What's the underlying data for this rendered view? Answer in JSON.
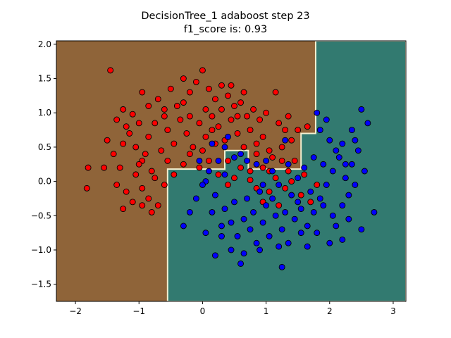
{
  "chart_data": {
    "type": "scatter",
    "title_line1": "DecisionTree_1 adaboost step 23",
    "title_line2": "f1_score is: 0.93",
    "xlabel": "",
    "ylabel": "",
    "xlim": [
      -2.3,
      3.2
    ],
    "ylim": [
      -1.75,
      2.05
    ],
    "xticks": [
      -2,
      -1,
      0,
      1,
      2,
      3
    ],
    "yticks": [
      -1.5,
      -1.0,
      -0.5,
      0.0,
      0.5,
      1.0,
      1.5,
      2.0
    ],
    "xtick_labels": [
      "−2",
      "−1",
      "0",
      "1",
      "2",
      "3"
    ],
    "ytick_labels": [
      "−1.5",
      "−1.0",
      "−0.5",
      "0.0",
      "0.5",
      "1.0",
      "1.5",
      "2.0"
    ],
    "grid": false,
    "decision_regions": {
      "class0_color": "#8f6439",
      "class1_color": "#327a70",
      "class1_region_polygon": [
        [
          -0.55,
          -1.75
        ],
        [
          -0.55,
          0.18
        ],
        [
          0.35,
          0.18
        ],
        [
          0.35,
          0.45
        ],
        [
          0.72,
          0.45
        ],
        [
          0.72,
          0.18
        ],
        [
          1.55,
          0.18
        ],
        [
          1.55,
          0.7
        ],
        [
          1.78,
          0.7
        ],
        [
          1.78,
          2.05
        ],
        [
          3.2,
          2.05
        ],
        [
          3.2,
          -1.75
        ]
      ]
    },
    "series": [
      {
        "color": "#ff0000",
        "points": [
          [
            -1.45,
            1.62
          ],
          [
            -1.25,
            1.05
          ],
          [
            -1.1,
            0.98
          ],
          [
            -0.95,
            1.3
          ],
          [
            -0.85,
            1.1
          ],
          [
            -0.7,
            1.2
          ],
          [
            -0.6,
            0.95
          ],
          [
            -0.5,
            1.35
          ],
          [
            -0.4,
            1.1
          ],
          [
            -0.3,
            1.5
          ],
          [
            -0.2,
            1.3
          ],
          [
            -0.1,
            1.45
          ],
          [
            0.0,
            1.62
          ],
          [
            0.1,
            1.35
          ],
          [
            0.2,
            1.2
          ],
          [
            0.3,
            1.4
          ],
          [
            0.4,
            1.25
          ],
          [
            0.5,
            1.1
          ],
          [
            0.6,
            1.15
          ],
          [
            0.7,
            0.95
          ],
          [
            0.8,
            1.05
          ],
          [
            0.9,
            0.9
          ],
          [
            1.0,
            1.0
          ],
          [
            1.15,
            1.3
          ],
          [
            1.2,
            0.85
          ],
          [
            1.3,
            0.75
          ],
          [
            1.35,
            0.95
          ],
          [
            1.4,
            0.6
          ],
          [
            1.5,
            0.75
          ],
          [
            1.65,
            0.8
          ],
          [
            -1.5,
            0.6
          ],
          [
            -1.4,
            0.4
          ],
          [
            -1.3,
            0.2
          ],
          [
            -1.25,
            0.55
          ],
          [
            -1.15,
            0.7
          ],
          [
            -1.05,
            0.5
          ],
          [
            -0.95,
            0.3
          ],
          [
            -0.85,
            0.65
          ],
          [
            -0.75,
            0.85
          ],
          [
            -0.65,
            0.45
          ],
          [
            -0.55,
            0.75
          ],
          [
            -0.45,
            0.55
          ],
          [
            -0.35,
            0.9
          ],
          [
            -0.25,
            0.7
          ],
          [
            -0.15,
            0.5
          ],
          [
            -0.05,
            0.85
          ],
          [
            0.05,
            0.65
          ],
          [
            0.15,
            0.95
          ],
          [
            0.25,
            0.8
          ],
          [
            0.35,
            0.6
          ],
          [
            0.45,
            0.9
          ],
          [
            0.55,
            0.7
          ],
          [
            0.65,
            0.5
          ],
          [
            0.75,
            0.75
          ],
          [
            0.85,
            0.55
          ],
          [
            0.95,
            0.65
          ],
          [
            1.05,
            0.45
          ],
          [
            1.1,
            0.35
          ],
          [
            1.25,
            0.5
          ],
          [
            1.45,
            0.3
          ],
          [
            -1.8,
            0.2
          ],
          [
            -1.82,
            -0.1
          ],
          [
            -1.55,
            0.2
          ],
          [
            -1.35,
            -0.05
          ],
          [
            -1.2,
            -0.15
          ],
          [
            -1.05,
            0.1
          ],
          [
            -0.95,
            -0.1
          ],
          [
            -0.85,
            -0.25
          ],
          [
            -0.75,
            0.05
          ],
          [
            -0.7,
            -0.35
          ],
          [
            -0.6,
            -0.05
          ],
          [
            -1.25,
            -0.4
          ],
          [
            -1.1,
            -0.3
          ],
          [
            -0.95,
            -0.35
          ],
          [
            -0.8,
            -0.45
          ],
          [
            -1.0,
            0.25
          ],
          [
            -0.9,
            0.4
          ],
          [
            -0.8,
            0.15
          ],
          [
            -0.55,
            0.3
          ],
          [
            -0.45,
            0.1
          ],
          [
            -0.3,
            0.25
          ],
          [
            -0.2,
            0.4
          ],
          [
            -0.05,
            0.2
          ],
          [
            0.0,
            0.45
          ],
          [
            0.1,
            0.3
          ],
          [
            0.25,
            0.1
          ],
          [
            0.4,
            0.3
          ],
          [
            0.5,
            0.05
          ],
          [
            0.6,
            0.2
          ],
          [
            0.75,
            0.15
          ],
          [
            0.85,
            0.4
          ],
          [
            0.95,
            0.2
          ],
          [
            1.05,
            0.15
          ],
          [
            1.15,
            0.05
          ],
          [
            1.25,
            0.3
          ],
          [
            1.35,
            0.15
          ],
          [
            0.75,
            0.02
          ],
          [
            0.85,
            -0.1
          ],
          [
            0.95,
            -0.3
          ],
          [
            1.05,
            -0.15
          ],
          [
            1.2,
            -0.35
          ],
          [
            1.3,
            -0.1
          ],
          [
            1.55,
            -0.2
          ],
          [
            1.7,
            -0.3
          ],
          [
            1.8,
            -0.05
          ],
          [
            1.6,
            0.1
          ],
          [
            1.4,
            0.0
          ],
          [
            0.4,
            -0.05
          ],
          [
            0.2,
            0.55
          ],
          [
            -0.6,
            1.05
          ],
          [
            -0.3,
            1.15
          ],
          [
            0.05,
            1.05
          ],
          [
            0.3,
            1.05
          ],
          [
            0.45,
            1.4
          ],
          [
            0.65,
            1.3
          ],
          [
            -1.0,
            0.85
          ],
          [
            -1.2,
            0.8
          ],
          [
            -1.35,
            0.9
          ],
          [
            -0.2,
            0.95
          ],
          [
            0.15,
            0.75
          ],
          [
            0.55,
            0.95
          ]
        ]
      },
      {
        "color": "#0000ff",
        "points": [
          [
            0.05,
            0.0
          ],
          [
            0.2,
            -0.2
          ],
          [
            0.35,
            -0.4
          ],
          [
            0.45,
            -0.6
          ],
          [
            0.55,
            -0.8
          ],
          [
            0.65,
            -0.55
          ],
          [
            0.75,
            -0.7
          ],
          [
            0.85,
            -0.9
          ],
          [
            0.95,
            -0.6
          ],
          [
            1.05,
            -0.8
          ],
          [
            1.15,
            -0.5
          ],
          [
            1.25,
            -0.7
          ],
          [
            1.35,
            -0.9
          ],
          [
            1.45,
            -0.55
          ],
          [
            1.55,
            -0.4
          ],
          [
            1.65,
            -0.65
          ],
          [
            1.75,
            -0.45
          ],
          [
            1.85,
            -0.25
          ],
          [
            1.95,
            -0.05
          ],
          [
            2.05,
            0.15
          ],
          [
            2.15,
            0.35
          ],
          [
            2.25,
            0.05
          ],
          [
            2.35,
            0.25
          ],
          [
            2.45,
            0.45
          ],
          [
            2.55,
            0.15
          ],
          [
            2.7,
            -0.45
          ],
          [
            2.4,
            0.6
          ],
          [
            2.2,
            0.55
          ],
          [
            2.0,
            0.6
          ],
          [
            1.85,
            0.75
          ],
          [
            1.95,
            0.9
          ],
          [
            1.8,
            1.0
          ],
          [
            2.5,
            1.05
          ],
          [
            2.6,
            0.85
          ],
          [
            2.3,
            -0.2
          ],
          [
            2.2,
            -0.35
          ],
          [
            2.05,
            -0.5
          ],
          [
            2.0,
            -0.9
          ],
          [
            1.65,
            -0.95
          ],
          [
            1.25,
            -1.25
          ],
          [
            0.65,
            -1.05
          ],
          [
            0.2,
            -1.08
          ],
          [
            -0.3,
            -0.65
          ],
          [
            -0.2,
            -0.45
          ],
          [
            -0.1,
            -0.25
          ],
          [
            0.0,
            -0.05
          ],
          [
            0.1,
            0.15
          ],
          [
            0.25,
            0.3
          ],
          [
            0.3,
            -0.65
          ],
          [
            0.5,
            -0.3
          ],
          [
            0.7,
            -0.25
          ],
          [
            0.8,
            -0.45
          ],
          [
            0.9,
            -0.15
          ],
          [
            1.0,
            -0.35
          ],
          [
            1.1,
            -0.25
          ],
          [
            1.3,
            -0.45
          ],
          [
            1.5,
            -0.3
          ],
          [
            1.7,
            -0.15
          ],
          [
            1.9,
            0.25
          ],
          [
            2.1,
            0.45
          ],
          [
            1.6,
            0.2
          ],
          [
            1.5,
            0.05
          ],
          [
            1.35,
            0.25
          ],
          [
            1.2,
            -0.05
          ],
          [
            1.4,
            -0.2
          ],
          [
            1.9,
            -0.35
          ],
          [
            2.1,
            -0.65
          ],
          [
            2.3,
            -0.55
          ],
          [
            2.5,
            -0.7
          ],
          [
            2.25,
            0.25
          ],
          [
            2.4,
            -0.05
          ],
          [
            0.6,
            -1.2
          ],
          [
            0.45,
            -1.0
          ],
          [
            0.9,
            -1.0
          ],
          [
            1.2,
            -0.95
          ],
          [
            1.55,
            -0.75
          ],
          [
            1.8,
            -0.75
          ],
          [
            2.2,
            -0.85
          ],
          [
            0.15,
            -0.45
          ],
          [
            0.3,
            -0.8
          ],
          [
            0.05,
            -0.75
          ],
          [
            -0.05,
            0.3
          ],
          [
            0.35,
            0.5
          ],
          [
            0.5,
            0.35
          ],
          [
            0.15,
            0.55
          ],
          [
            0.4,
            0.65
          ],
          [
            0.6,
            0.4
          ],
          [
            1.0,
            0.3
          ],
          [
            1.3,
            0.6
          ],
          [
            0.85,
            0.25
          ],
          [
            0.7,
            0.3
          ],
          [
            1.75,
            0.35
          ],
          [
            2.35,
            0.75
          ],
          [
            1.1,
            0.15
          ],
          [
            0.95,
            -0.05
          ],
          [
            0.35,
            0.1
          ]
        ]
      }
    ]
  }
}
